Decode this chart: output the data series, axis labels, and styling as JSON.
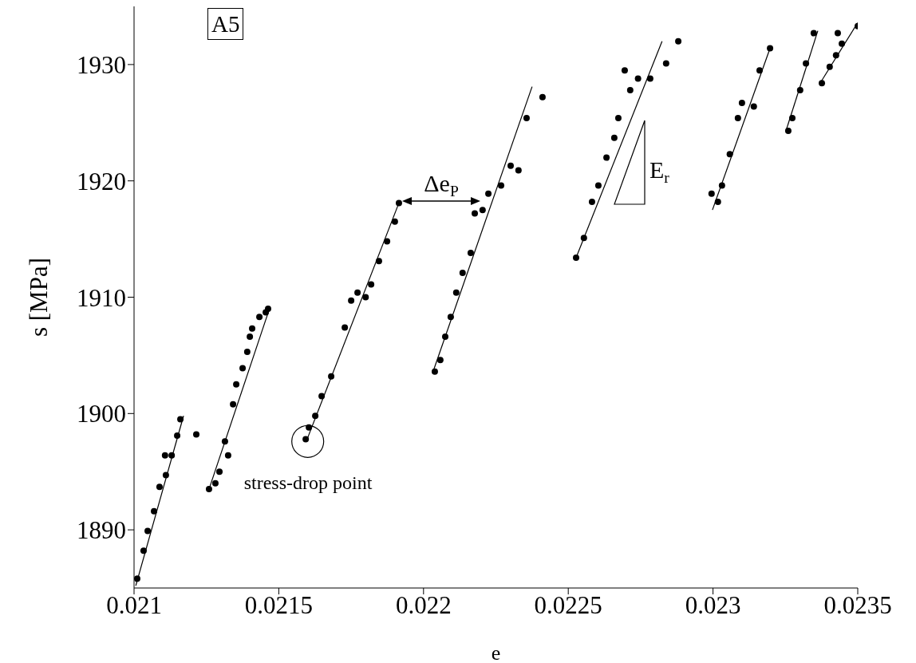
{
  "chart_data": {
    "type": "scatter",
    "xlabel": "e",
    "ylabel": "s [MPa]",
    "xlim": [
      0.021,
      0.0235
    ],
    "ylim": [
      1885,
      1935
    ],
    "xticks": [
      0.021,
      0.0215,
      0.022,
      0.0225,
      0.023,
      0.0235
    ],
    "yticks": [
      1890,
      1900,
      1910,
      1920,
      1930
    ],
    "grid": false,
    "line_style": "solid",
    "annotations": [
      "A5",
      "Δe$_{P}$",
      "E$_{r}$",
      {
        "text": "stress-drop point",
        "x": 0.0216,
        "y": 1897.6
      }
    ],
    "series": [
      {
        "marker": "circle",
        "color": "#000000",
        "x": [
          0.021011,
          0.021033,
          0.021047,
          0.021069,
          0.021088,
          0.02111,
          0.02113,
          0.021107,
          0.021149,
          0.02116,
          0.021215,
          0.021259,
          0.021281,
          0.021295,
          0.021314,
          0.021325,
          0.021342,
          0.021353,
          0.021375,
          0.021391,
          0.0214,
          0.021408,
          0.021433,
          0.021455,
          0.021463,
          0.021593,
          0.021604,
          0.021626,
          0.021648,
          0.021681,
          0.021728,
          0.02175,
          0.021772,
          0.0218,
          0.021819,
          0.021846,
          0.021874,
          0.021901,
          0.021915,
          0.022039,
          0.022058,
          0.022075,
          0.022094,
          0.022113,
          0.022135,
          0.022163,
          0.022177,
          0.022204,
          0.022224,
          0.022268,
          0.022301,
          0.022328,
          0.022356,
          0.022411,
          0.022527,
          0.022554,
          0.022582,
          0.022604,
          0.022632,
          0.022659,
          0.022673,
          0.022714,
          0.022741,
          0.022783,
          0.022695,
          0.022838,
          0.02288,
          0.022995,
          0.023017,
          0.023031,
          0.023058,
          0.023086,
          0.0231,
          0.023141,
          0.023161,
          0.023197,
          0.02326,
          0.023274,
          0.023301,
          0.023321,
          0.023348,
          0.023376,
          0.023403,
          0.023425,
          0.023445,
          0.023431,
          0.0235
        ],
        "values": [
          1885.8,
          1888.2,
          1889.9,
          1891.6,
          1893.7,
          1894.7,
          1896.4,
          1896.4,
          1898.1,
          1899.5,
          1898.2,
          1893.5,
          1894,
          1895,
          1897.6,
          1896.4,
          1900.8,
          1902.5,
          1903.9,
          1905.3,
          1906.6,
          1907.3,
          1908.3,
          1908.7,
          1909,
          1897.8,
          1898.8,
          1899.8,
          1901.5,
          1903.2,
          1907.4,
          1909.7,
          1910.4,
          1910,
          1911.1,
          1913.1,
          1914.8,
          1916.5,
          1918.1,
          1903.6,
          1904.6,
          1906.6,
          1908.3,
          1910.4,
          1912.1,
          1913.8,
          1917.2,
          1917.5,
          1918.9,
          1919.6,
          1921.3,
          1920.9,
          1925.4,
          1927.2,
          1913.4,
          1915.1,
          1918.2,
          1919.6,
          1922,
          1923.7,
          1925.4,
          1927.8,
          1928.8,
          1928.8,
          1929.5,
          1930.1,
          1932,
          1918.9,
          1918.2,
          1919.6,
          1922.3,
          1925.4,
          1926.7,
          1926.4,
          1929.5,
          1931.4,
          1924.3,
          1925.4,
          1927.8,
          1930.1,
          1932.7,
          1928.4,
          1929.8,
          1930.8,
          1931.8,
          1932.7,
          1933.3
        ]
      },
      {
        "type": "line",
        "color": "#000000",
        "x": [
          0.021006,
          0.021171
        ],
        "values": [
          1885.2,
          1899.8
        ]
      },
      {
        "type": "line",
        "color": "#000000",
        "x": [
          0.021259,
          0.021469
        ],
        "values": [
          1893.5,
          1909.1
        ]
      },
      {
        "type": "line",
        "color": "#000000",
        "x": [
          0.021598,
          0.021915
        ],
        "values": [
          1897.8,
          1918.1
        ]
      },
      {
        "type": "line",
        "color": "#000000",
        "x": [
          0.022033,
          0.022375
        ],
        "values": [
          1903.6,
          1928.1
        ]
      },
      {
        "type": "line",
        "color": "#000000",
        "x": [
          0.022527,
          0.022824
        ],
        "values": [
          1913.4,
          1932
        ]
      },
      {
        "type": "line",
        "color": "#000000",
        "x": [
          0.022998,
          0.023197
        ],
        "values": [
          1917.5,
          1931.4
        ]
      },
      {
        "type": "line",
        "color": "#000000",
        "x": [
          0.023252,
          0.023362
        ],
        "values": [
          1924.3,
          1932.9
        ]
      },
      {
        "type": "line",
        "color": "#000000",
        "x": [
          0.02337,
          0.0235
        ],
        "values": [
          1928.4,
          1933.6
        ]
      }
    ]
  }
}
